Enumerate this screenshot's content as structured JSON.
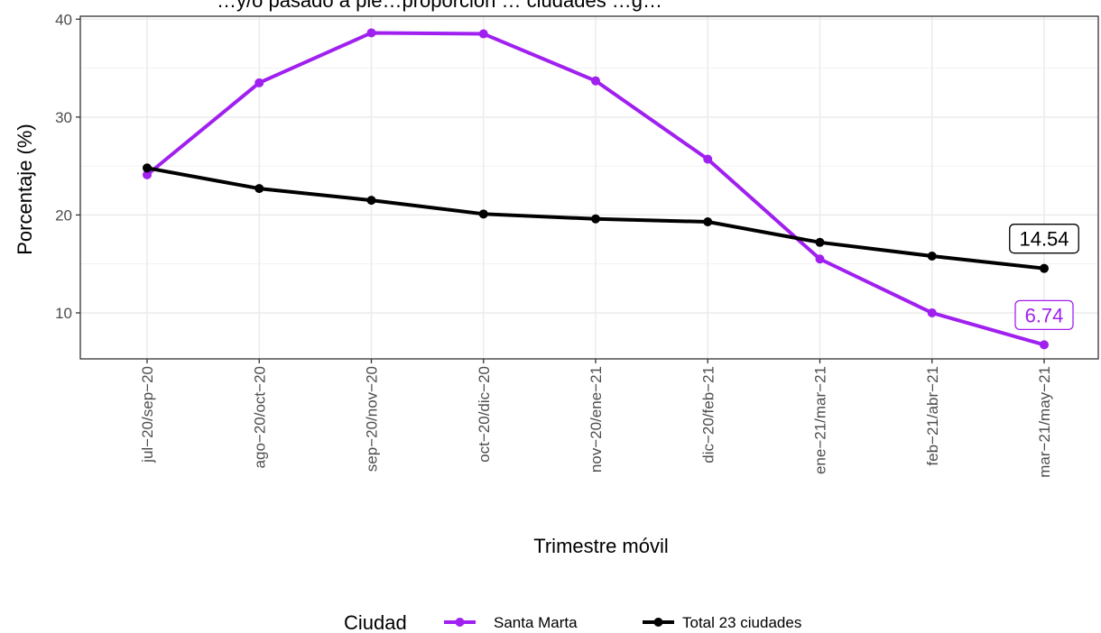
{
  "chart_data": {
    "type": "line",
    "title": "…y/o pasado a pie…proporción … ciudades …g…",
    "xlabel": "Trimestre móvil",
    "ylabel": "Porcentaje (%)",
    "ylim": [
      5.3,
      40.3
    ],
    "yticks": [
      10,
      20,
      30,
      40
    ],
    "grid": true,
    "categories": [
      "jul−20/sep−20",
      "ago−20/oct−20",
      "sep−20/nov−20",
      "oct−20/dic−20",
      "nov−20/ene−21",
      "dic−20/feb−21",
      "ene−21/mar−21",
      "feb−21/abr−21",
      "mar−21/may−21"
    ],
    "legend": {
      "title": "Ciudad",
      "position": "bottom"
    },
    "series": [
      {
        "name": "Santa Marta",
        "color": "#a020f0",
        "values": [
          24.1,
          33.5,
          38.6,
          38.5,
          33.7,
          25.7,
          15.5,
          10.0,
          6.74
        ],
        "end_label": "6.74"
      },
      {
        "name": "Total 23 ciudades",
        "color": "#000000",
        "values": [
          24.8,
          22.7,
          21.5,
          20.1,
          19.6,
          19.3,
          17.2,
          15.8,
          14.54
        ],
        "end_label": "14.54"
      }
    ]
  }
}
